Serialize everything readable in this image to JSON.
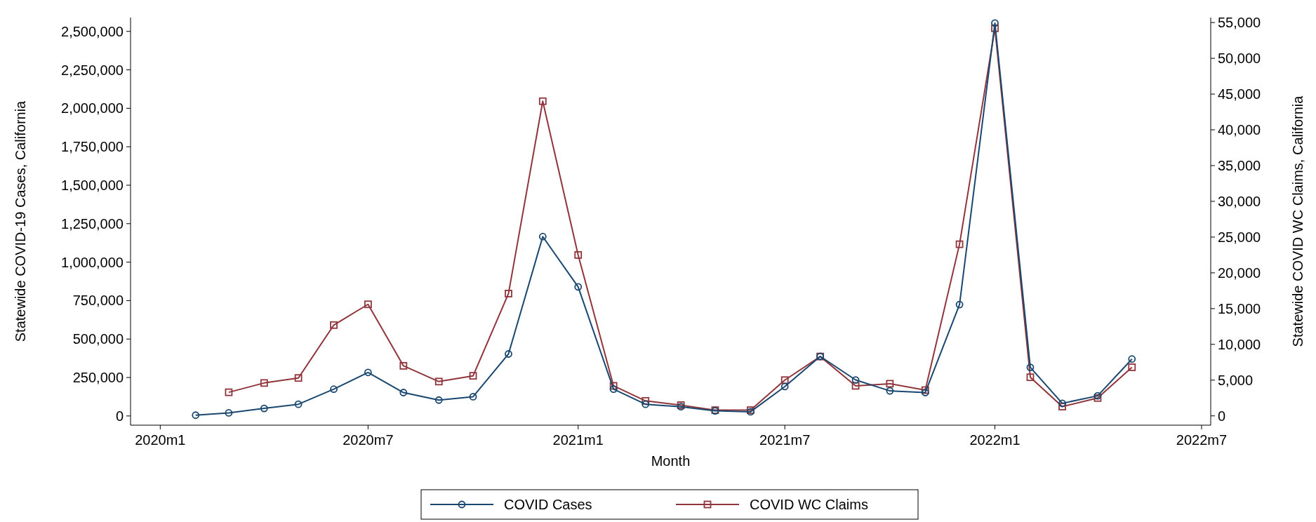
{
  "chart_data": {
    "type": "line",
    "xlabel": "Month",
    "ylabel": "Statewide COVID-19 Cases, California",
    "y2label": "Statewide COVID WC Claims, California",
    "xlim": [
      "2019-12-06",
      "2022-07-09"
    ],
    "xticks": [
      {
        "value": "2020-01",
        "label": "2020m1"
      },
      {
        "value": "2020-07",
        "label": "2020m7"
      },
      {
        "value": "2021-01",
        "label": "2021m1"
      },
      {
        "value": "2021-07",
        "label": "2021m7"
      },
      {
        "value": "2022-01",
        "label": "2022m1"
      },
      {
        "value": "2022-07",
        "label": "2022m7"
      }
    ],
    "ylim": [
      -60000,
      2590000
    ],
    "yticks": [
      {
        "value": 0,
        "label": "0"
      },
      {
        "value": 250000,
        "label": "250,000"
      },
      {
        "value": 500000,
        "label": "500,000"
      },
      {
        "value": 750000,
        "label": "750,000"
      },
      {
        "value": 1000000,
        "label": "1,000,000"
      },
      {
        "value": 1250000,
        "label": "1,250,000"
      },
      {
        "value": 1500000,
        "label": "1,500,000"
      },
      {
        "value": 1750000,
        "label": "1,750,000"
      },
      {
        "value": 2000000,
        "label": "2,000,000"
      },
      {
        "value": 2250000,
        "label": "2,250,000"
      },
      {
        "value": 2500000,
        "label": "2,500,000"
      }
    ],
    "y2lim": [
      -1300,
      55700
    ],
    "y2ticks": [
      {
        "value": 0,
        "label": "0"
      },
      {
        "value": 5000,
        "label": "5,000"
      },
      {
        "value": 10000,
        "label": "10,000"
      },
      {
        "value": 15000,
        "label": "15,000"
      },
      {
        "value": 20000,
        "label": "20,000"
      },
      {
        "value": 25000,
        "label": "25,000"
      },
      {
        "value": 30000,
        "label": "30,000"
      },
      {
        "value": 35000,
        "label": "35,000"
      },
      {
        "value": 40000,
        "label": "40,000"
      },
      {
        "value": 45000,
        "label": "45,000"
      },
      {
        "value": 50000,
        "label": "50,000"
      },
      {
        "value": 55000,
        "label": "55,000"
      }
    ],
    "grid": false,
    "legend": "bottom",
    "line_style": "solid",
    "series": [
      {
        "name": "COVID Cases",
        "color": "#1a476f",
        "marker": "circle",
        "x": [
          "2020-02",
          "2020-03",
          "2020-04",
          "2020-05",
          "2020-06",
          "2020-07",
          "2020-08",
          "2020-09",
          "2020-10",
          "2020-11",
          "2020-12",
          "2021-01",
          "2021-02",
          "2021-03",
          "2021-04",
          "2021-05",
          "2021-06",
          "2021-07",
          "2021-08",
          "2021-09",
          "2021-10",
          "2021-11",
          "2021-12",
          "2022-01",
          "2022-02",
          "2022-03",
          "2022-04",
          "2022-05"
        ],
        "values": [
          5000,
          20000,
          49000,
          76000,
          174000,
          283000,
          152000,
          103000,
          125000,
          403000,
          1166000,
          839000,
          174000,
          76000,
          60000,
          33000,
          27000,
          191000,
          387000,
          234000,
          163000,
          152000,
          724000,
          2554000,
          316000,
          82000,
          131000,
          370000
        ]
      },
      {
        "name": "COVID WC Claims",
        "color": "#90353b",
        "marker": "square",
        "axis": "y2",
        "x": [
          "2020-03",
          "2020-04",
          "2020-05",
          "2020-06",
          "2020-07",
          "2020-08",
          "2020-09",
          "2020-10",
          "2020-11",
          "2020-12",
          "2021-01",
          "2021-02",
          "2021-03",
          "2021-04",
          "2021-05",
          "2021-06",
          "2021-07",
          "2021-08",
          "2021-09",
          "2021-10",
          "2021-11",
          "2021-12",
          "2022-01",
          "2022-02",
          "2022-03",
          "2022-04",
          "2022-05"
        ],
        "values": [
          3300,
          4600,
          5300,
          12700,
          15600,
          7000,
          4800,
          5600,
          17100,
          44000,
          22500,
          4200,
          2100,
          1500,
          800,
          800,
          5000,
          8300,
          4200,
          4500,
          3600,
          24000,
          54200,
          5400,
          1300,
          2500,
          6800
        ]
      }
    ]
  }
}
